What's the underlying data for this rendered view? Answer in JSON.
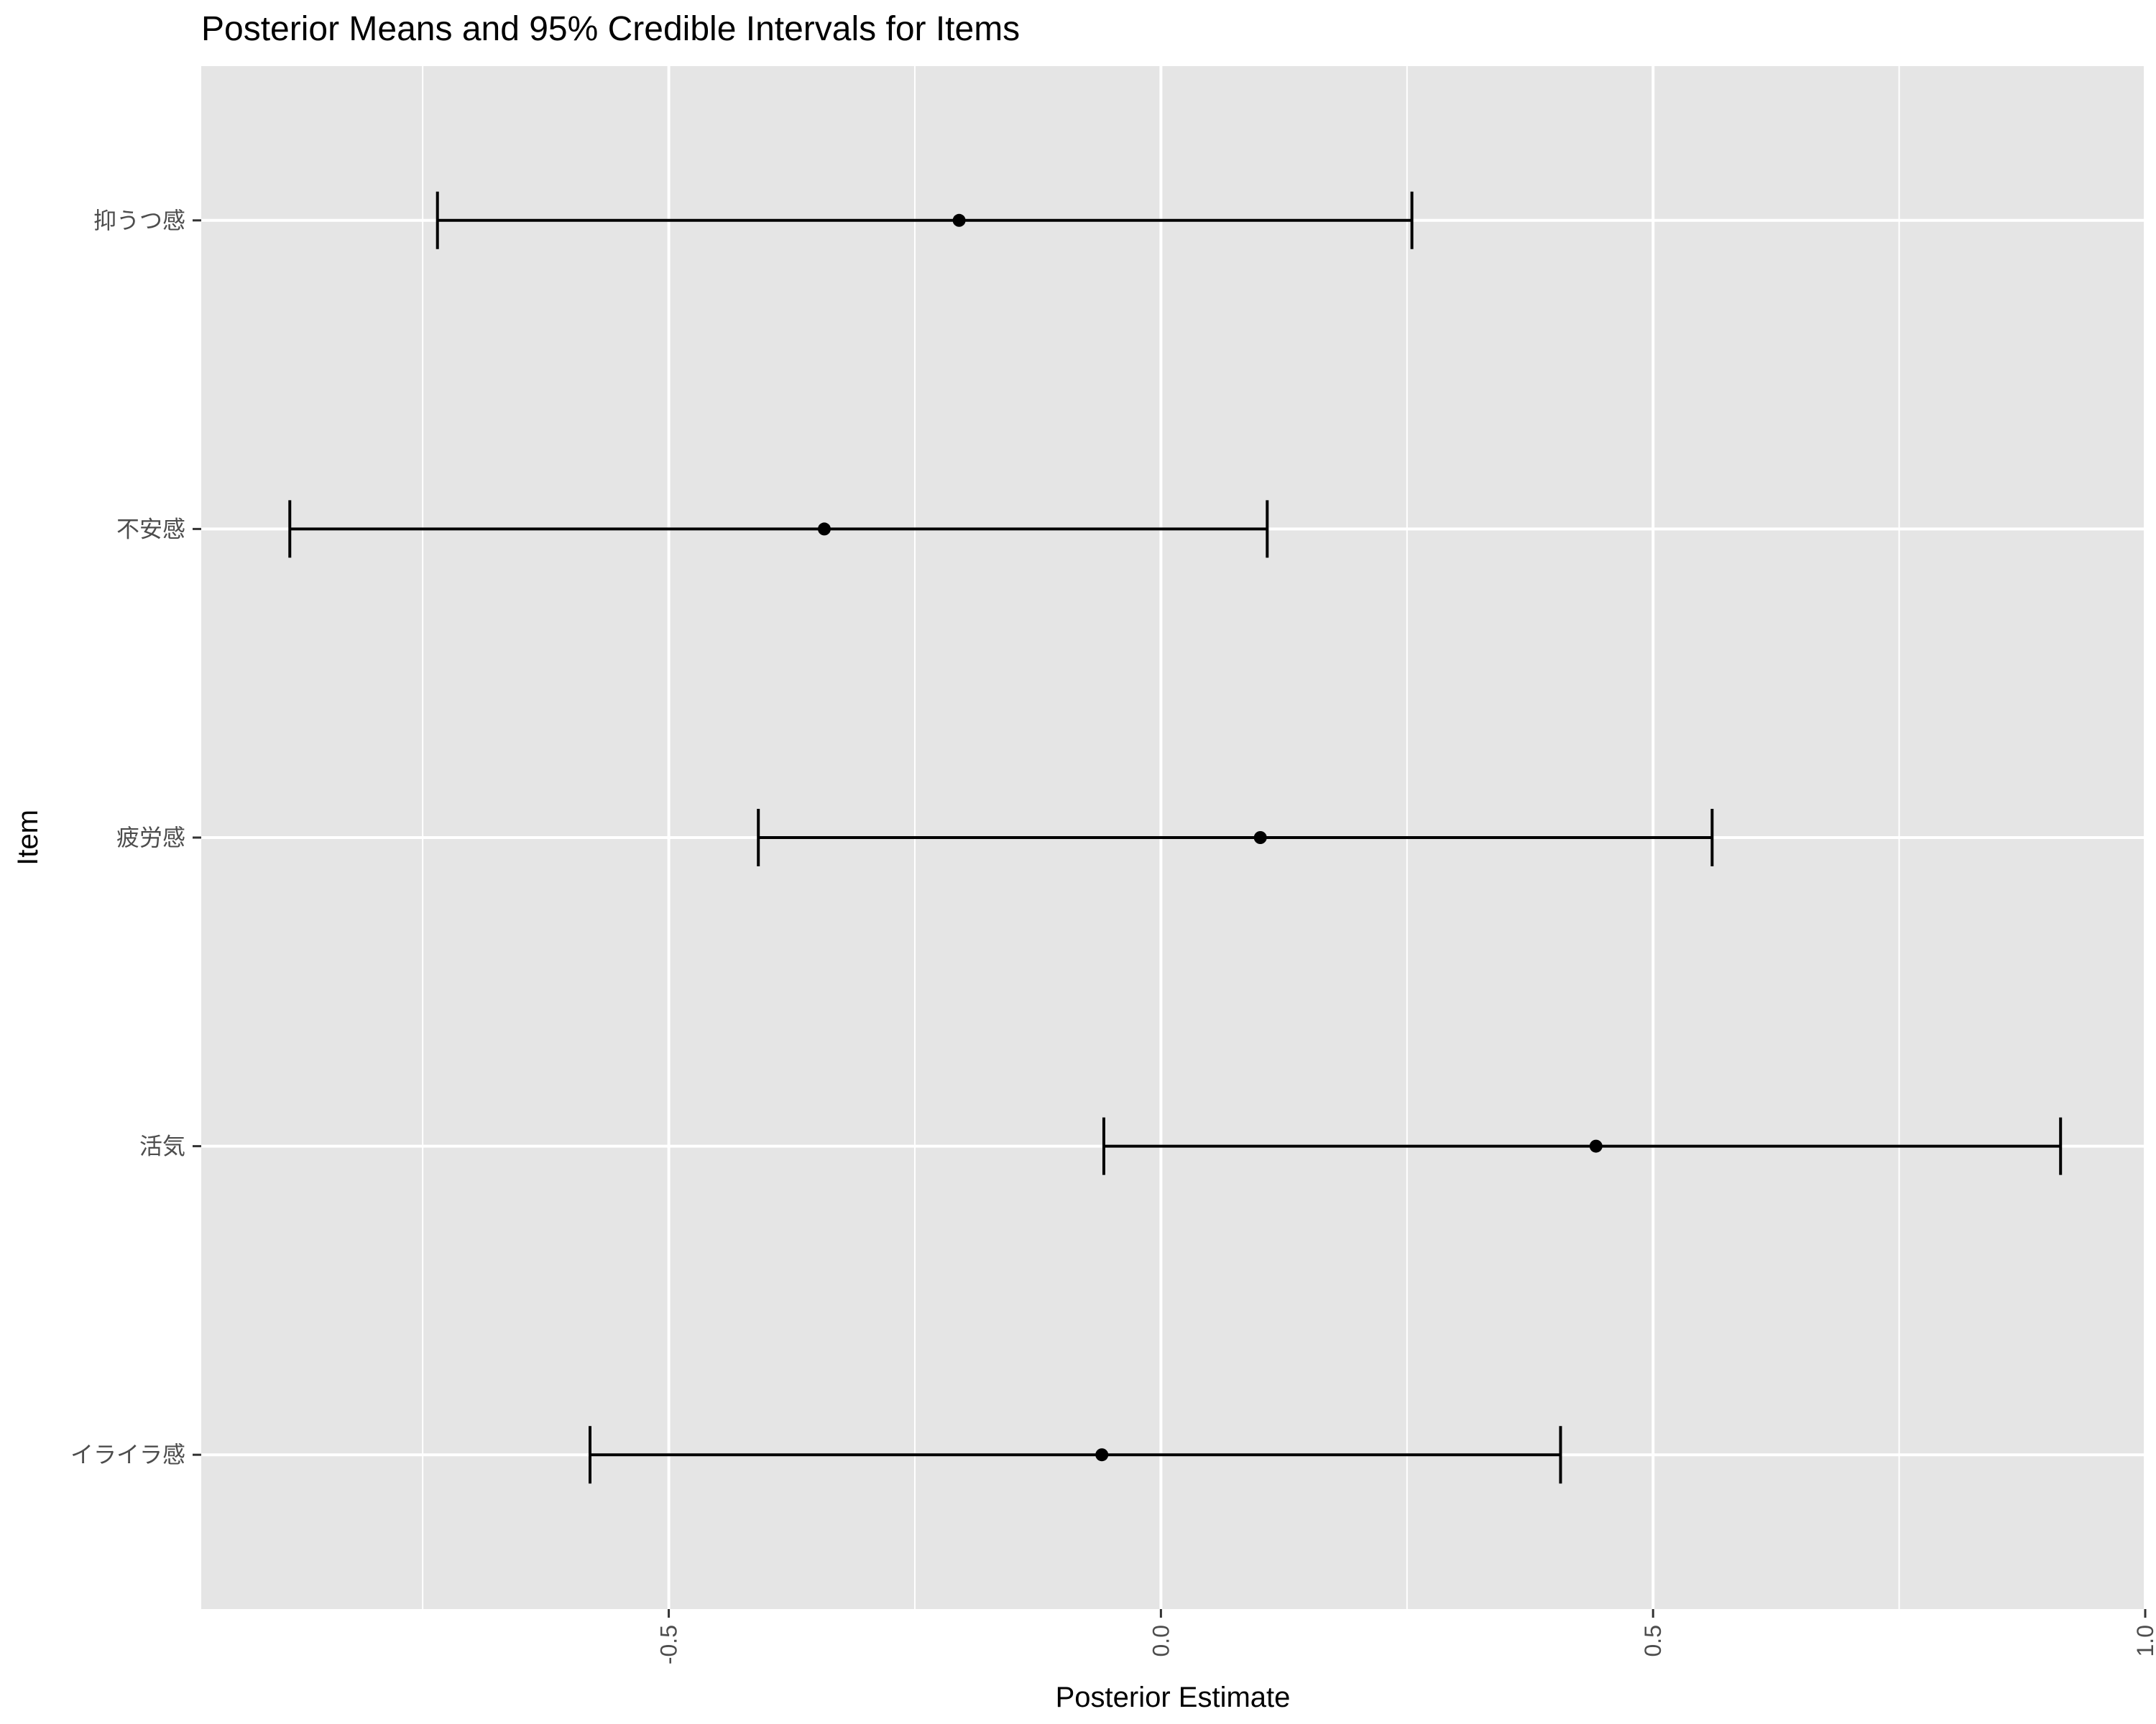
{
  "chart_data": {
    "type": "errorbar",
    "title": "Posterior Means and 95% Credible Intervals for Items",
    "xlabel": "Posterior Estimate",
    "ylabel": "Item",
    "xlim": [
      -0.975,
      1.0
    ],
    "xticks": [
      -0.5,
      0.0,
      0.5,
      1.0
    ],
    "xtick_labels": [
      "-0.5",
      "0.0",
      "0.5",
      "1.0"
    ],
    "x_minor_gridlines": [
      -0.75,
      -0.25,
      0.25,
      0.75
    ],
    "grid": true,
    "panel_background": "#e5e5e5",
    "grid_color": "#ffffff",
    "mark_color": "#000000",
    "categories": [
      "抑うつ感",
      "不安感",
      "疲労感",
      "活気",
      "イライラ感"
    ],
    "items": [
      {
        "name": "抑うつ感",
        "mean": -0.205,
        "lower": -0.735,
        "upper": 0.255
      },
      {
        "name": "不安感",
        "mean": -0.342,
        "lower": -0.885,
        "upper": 0.108
      },
      {
        "name": "疲労感",
        "mean": 0.101,
        "lower": -0.409,
        "upper": 0.56
      },
      {
        "name": "活気",
        "mean": 0.442,
        "lower": -0.058,
        "upper": 0.914
      },
      {
        "name": "イライラ感",
        "mean": -0.06,
        "lower": -0.58,
        "upper": 0.406
      }
    ]
  }
}
